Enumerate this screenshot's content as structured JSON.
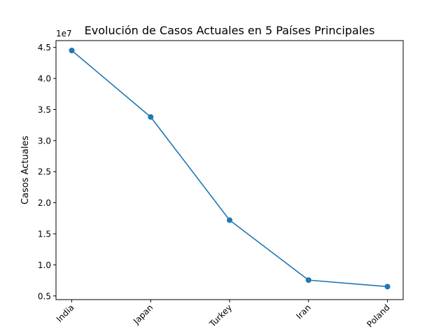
{
  "chart_data": {
    "type": "line",
    "title": "Evolución de Casos Actuales en 5 Países Principales",
    "xlabel": "",
    "ylabel": "Casos Actuales",
    "categories": [
      "India",
      "Japan",
      "Turkey",
      "Iran",
      "Poland"
    ],
    "series": [
      {
        "values": [
          44500000,
          33800000,
          17200000,
          7550000,
          6500000
        ],
        "color": "#1f77b4",
        "marker": "circle"
      }
    ],
    "y_offset_text": "1e7",
    "y_ticks": [
      5000000,
      10000000,
      15000000,
      20000000,
      25000000,
      30000000,
      35000000,
      40000000,
      45000000
    ],
    "y_tick_labels": [
      "0.5",
      "1.0",
      "1.5",
      "2.0",
      "2.5",
      "3.0",
      "3.5",
      "4.0",
      "4.5"
    ],
    "ylim": [
      4410000,
      46090000
    ],
    "x_tick_rotation_deg": 45,
    "grid": false,
    "legend": false
  }
}
